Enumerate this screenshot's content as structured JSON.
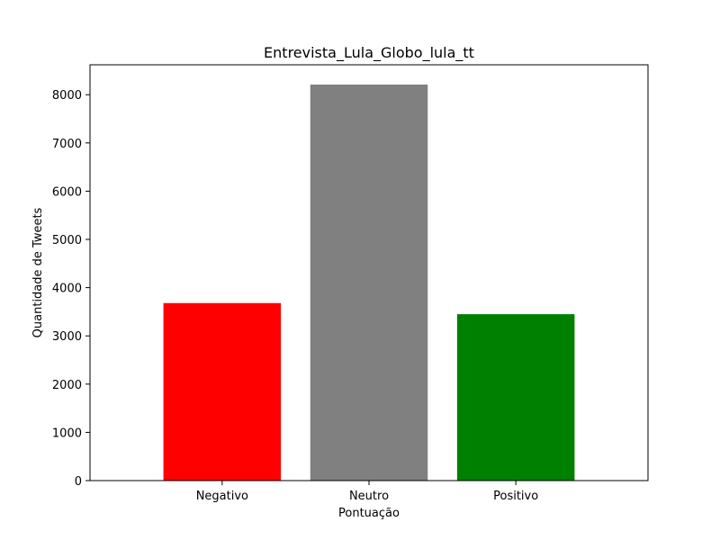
{
  "chart_data": {
    "type": "bar",
    "title": "Entrevista_Lula_Globo_lula_tt",
    "xlabel": "Pontuação",
    "ylabel": "Quantidade de Tweets",
    "categories": [
      "Negativo",
      "Neutro",
      "Positivo"
    ],
    "values": [
      3680,
      8210,
      3450
    ],
    "colors": [
      "#ff0000",
      "#808080",
      "#008000"
    ],
    "ylim": [
      0,
      8620
    ],
    "yticks": [
      0,
      1000,
      2000,
      3000,
      4000,
      5000,
      6000,
      7000,
      8000
    ],
    "grid": false
  }
}
